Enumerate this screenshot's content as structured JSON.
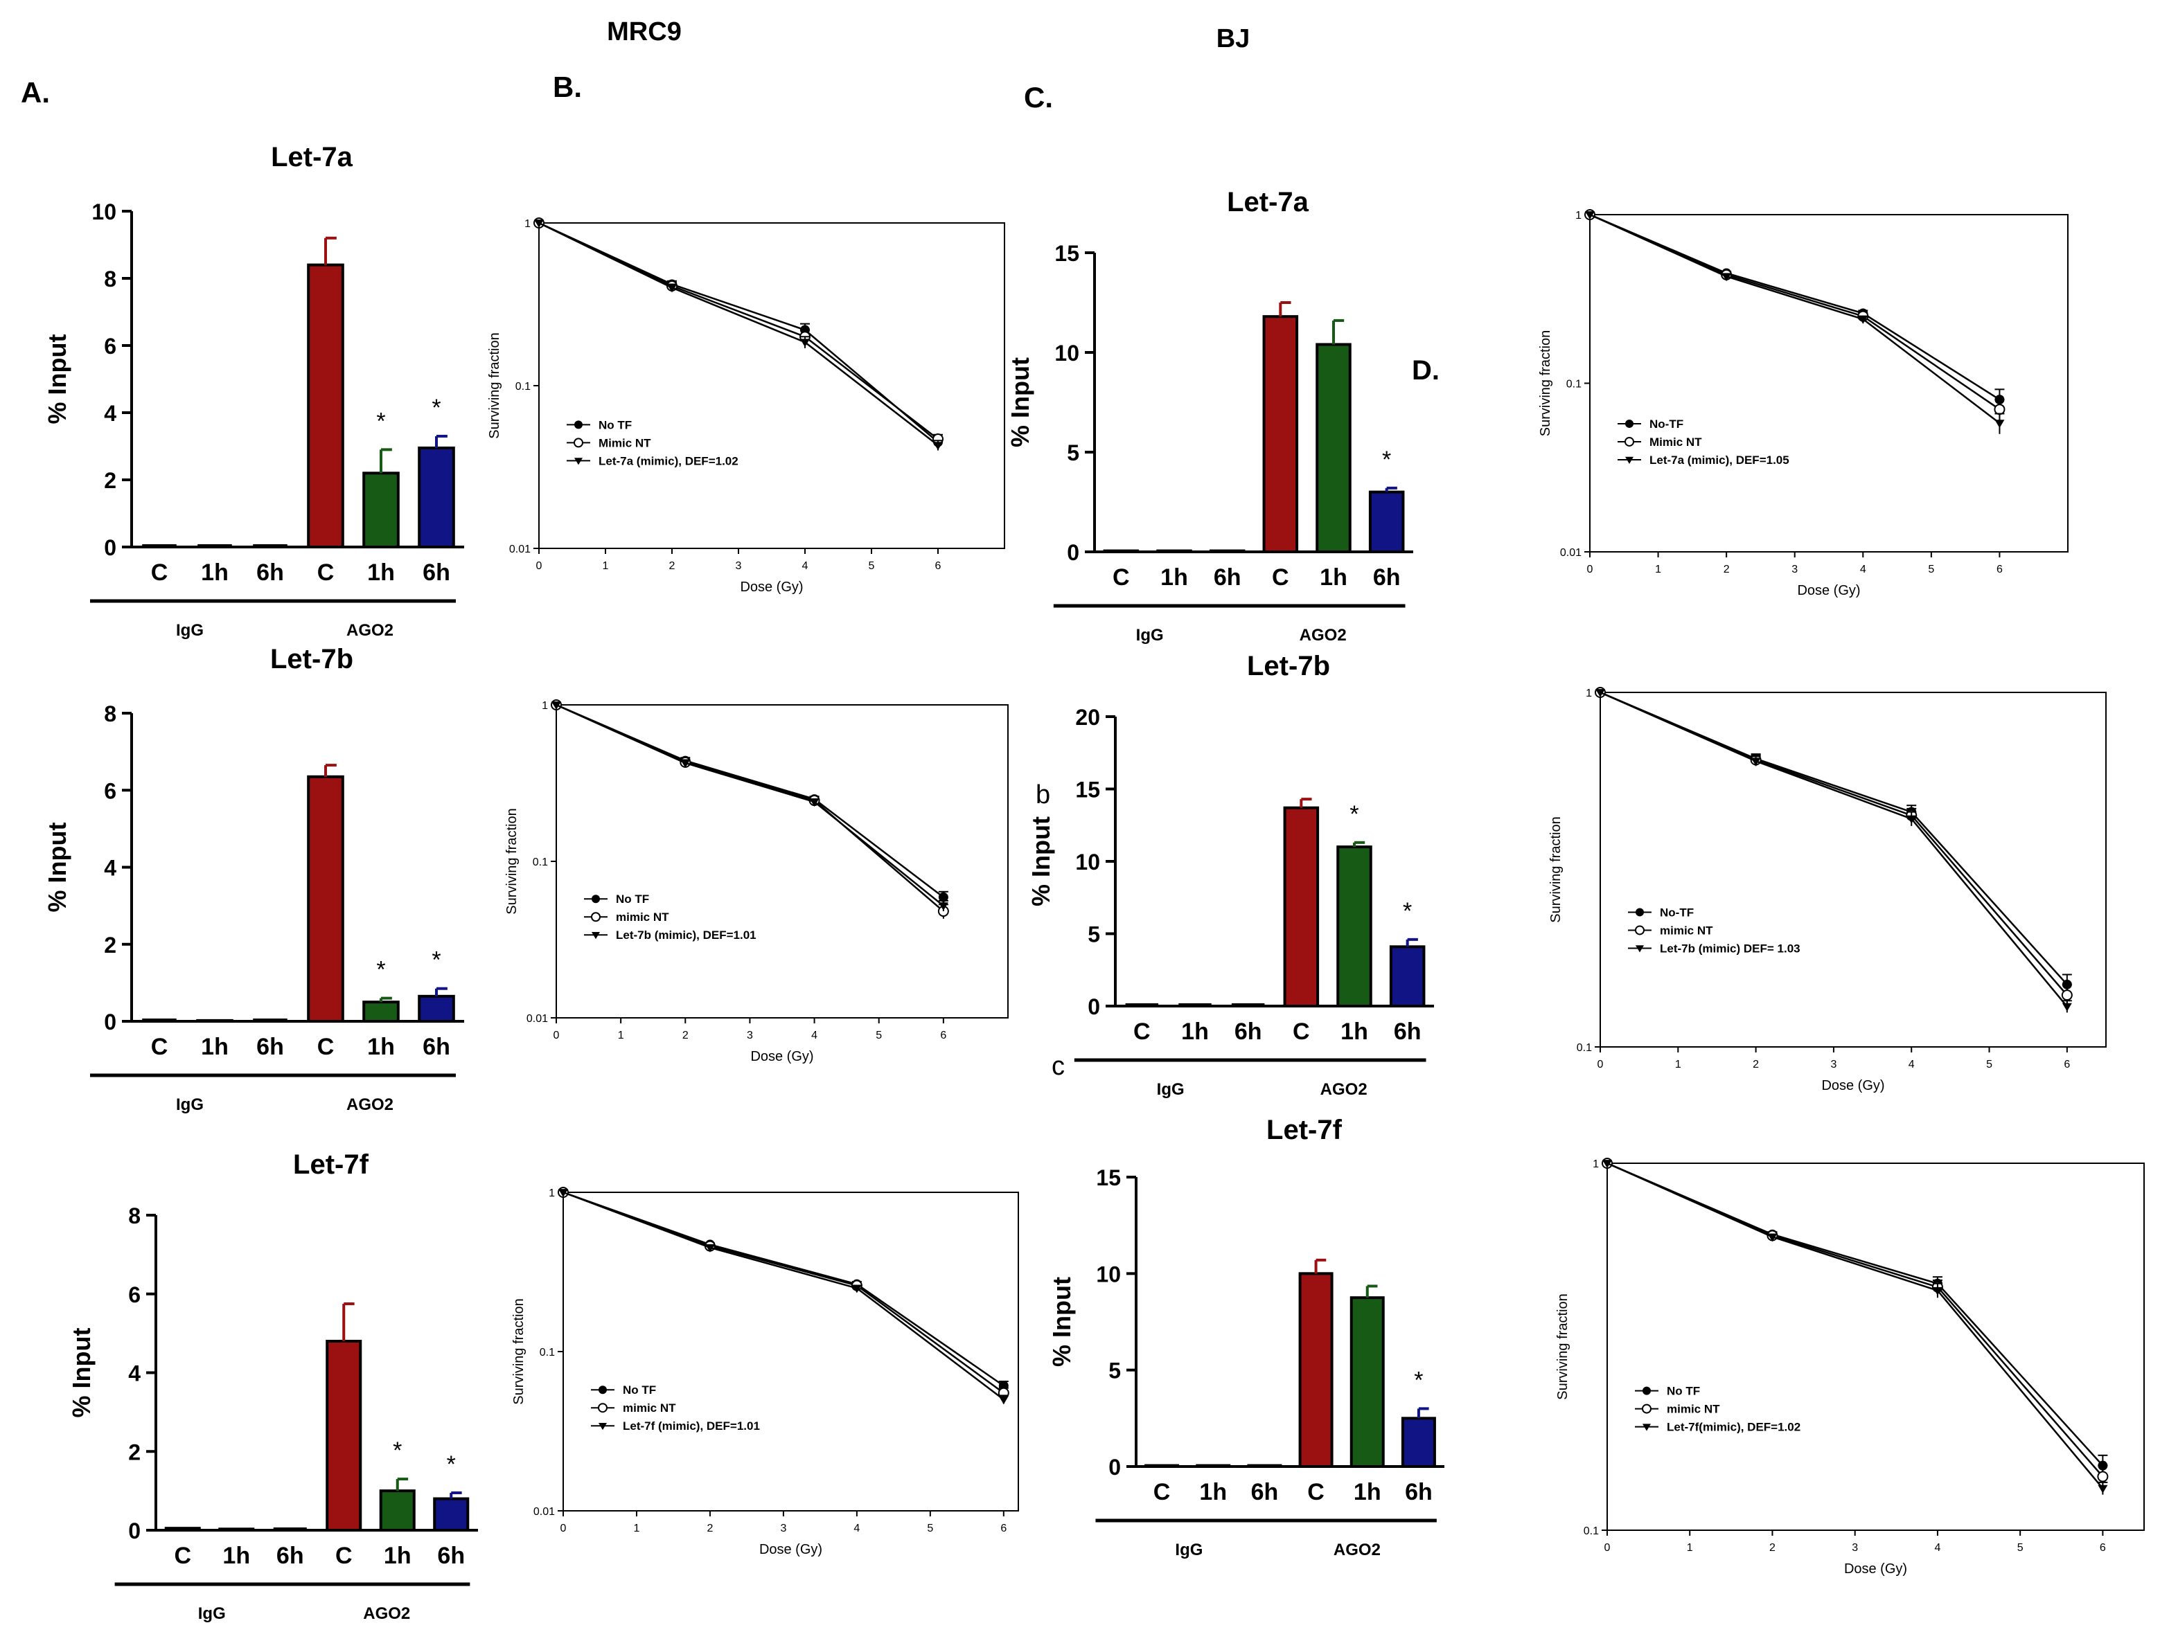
{
  "header": {
    "group_mrc9": "MRC9",
    "group_bj": "BJ",
    "panel_a": "A.",
    "panel_b": "B.",
    "panel_c": "C.",
    "panel_d": "D.",
    "stray_b": "b",
    "stray_c": "c"
  },
  "colors": {
    "c_bar": "#9b1010",
    "h1_bar": "#165a16",
    "h6_bar": "#101485",
    "axis": "#000000"
  },
  "chart_data": [
    {
      "id": "mrc9-let7a-bar",
      "type": "bar",
      "title": "Let-7a",
      "ylabel": "% Input",
      "ylim": [
        0,
        10
      ],
      "yticks": [
        0,
        2,
        4,
        6,
        8,
        10
      ],
      "categories": [
        "C",
        "1h",
        "6h",
        "C",
        "1h",
        "6h"
      ],
      "values": [
        0,
        0.02,
        0,
        8.4,
        2.2,
        2.95
      ],
      "errors": [
        0,
        0,
        0,
        0.8,
        0.7,
        0.35
      ],
      "significance": [
        "",
        "",
        "",
        "",
        "*",
        "*"
      ],
      "group_labels": [
        "IgG",
        "AGO2"
      ]
    },
    {
      "id": "mrc9-let7b-bar",
      "type": "bar",
      "title": "Let-7b",
      "ylabel": "% Input",
      "ylim": [
        0,
        8
      ],
      "yticks": [
        0,
        2,
        4,
        6,
        8
      ],
      "categories": [
        "C",
        "1h",
        "6h",
        "C",
        "1h",
        "6h"
      ],
      "values": [
        0,
        0.02,
        0,
        6.35,
        0.5,
        0.65
      ],
      "errors": [
        0,
        0,
        0,
        0.3,
        0.1,
        0.2
      ],
      "significance": [
        "",
        "",
        "",
        "",
        "*",
        "*"
      ],
      "group_labels": [
        "IgG",
        "AGO2"
      ]
    },
    {
      "id": "mrc9-let7f-bar",
      "type": "bar",
      "title": "Let-7f",
      "ylabel": "% Input",
      "ylim": [
        0,
        8
      ],
      "yticks": [
        0,
        2,
        4,
        6,
        8
      ],
      "categories": [
        "C",
        "1h",
        "6h",
        "C",
        "1h",
        "6h"
      ],
      "values": [
        0.05,
        0.03,
        0,
        4.8,
        1.0,
        0.8
      ],
      "errors": [
        0,
        0,
        0,
        0.95,
        0.3,
        0.15
      ],
      "significance": [
        "",
        "",
        "",
        "",
        "*",
        "*"
      ],
      "group_labels": [
        "IgG",
        "AGO2"
      ]
    },
    {
      "id": "bj-let7a-bar",
      "type": "bar",
      "title": "Let-7a",
      "ylabel": "% Input",
      "ylim": [
        0,
        15
      ],
      "yticks": [
        0,
        5,
        10,
        15
      ],
      "categories": [
        "C",
        "1h",
        "6h",
        "C",
        "1h",
        "6h"
      ],
      "values": [
        0.05,
        0.05,
        0.05,
        11.8,
        10.4,
        3.0
      ],
      "errors": [
        0,
        0,
        0,
        0.7,
        1.2,
        0.2
      ],
      "significance": [
        "",
        "",
        "",
        "",
        "",
        "*"
      ],
      "group_labels": [
        "IgG",
        "AGO2"
      ]
    },
    {
      "id": "bj-let7b-bar",
      "type": "bar",
      "title": "Let-7b",
      "ylabel": "% Input",
      "ylim": [
        0,
        20
      ],
      "yticks": [
        0,
        5,
        10,
        15,
        20
      ],
      "categories": [
        "C",
        "1h",
        "6h",
        "C",
        "1h",
        "6h"
      ],
      "values": [
        0,
        0,
        0,
        13.7,
        11.0,
        4.1
      ],
      "errors": [
        0,
        0,
        0,
        0.6,
        0.3,
        0.5
      ],
      "significance": [
        "",
        "",
        "",
        "",
        "*",
        "*"
      ],
      "group_labels": [
        "IgG",
        "AGO2"
      ]
    },
    {
      "id": "bj-let7f-bar",
      "type": "bar",
      "title": "Let-7f",
      "ylabel": "% Input",
      "ylim": [
        0,
        15
      ],
      "yticks": [
        0,
        5,
        10,
        15
      ],
      "categories": [
        "C",
        "1h",
        "6h",
        "C",
        "1h",
        "6h"
      ],
      "values": [
        0.05,
        0.05,
        0.05,
        10.0,
        8.75,
        2.5
      ],
      "errors": [
        0,
        0,
        0,
        0.7,
        0.6,
        0.5
      ],
      "significance": [
        "",
        "",
        "",
        "",
        "",
        "*"
      ],
      "group_labels": [
        "IgG",
        "AGO2"
      ]
    },
    {
      "id": "mrc9-let7a-survival",
      "type": "line",
      "xlabel": "Dose (Gy)",
      "ylabel": "Surviving fraction",
      "yscale": "log",
      "xlim": [
        0,
        7
      ],
      "ylim": [
        0.01,
        1
      ],
      "xticks": [
        0,
        1,
        2,
        3,
        4,
        5,
        6
      ],
      "yticks": [
        0.01,
        0.1,
        1
      ],
      "yticklabels": [
        "0.01",
        "0.1",
        "1"
      ],
      "x": [
        0,
        2,
        4,
        6
      ],
      "series": [
        {
          "name": "No TF",
          "marker": "filled-circle",
          "values": [
            1,
            0.42,
            0.22,
            0.045
          ],
          "errors": [
            0,
            0.02,
            0.02,
            0.003
          ]
        },
        {
          "name": "Mimic NT",
          "marker": "open-circle",
          "values": [
            1,
            0.41,
            0.2,
            0.047
          ],
          "errors": [
            0,
            0.02,
            0.02,
            0.003
          ]
        },
        {
          "name": "Let-7a (mimic), DEF=1.02",
          "marker": "filled-triangle",
          "values": [
            1,
            0.4,
            0.185,
            0.043
          ],
          "errors": [
            0,
            0.02,
            0.015,
            0.003
          ]
        }
      ]
    },
    {
      "id": "mrc9-let7b-survival",
      "type": "line",
      "xlabel": "Dose (Gy)",
      "ylabel": "Surviving fraction",
      "yscale": "log",
      "xlim": [
        0,
        7
      ],
      "ylim": [
        0.01,
        1
      ],
      "xticks": [
        0,
        1,
        2,
        3,
        4,
        5,
        6
      ],
      "yticks": [
        0.01,
        0.1,
        1
      ],
      "yticklabels": [
        "0.01",
        "0.1",
        "1"
      ],
      "x": [
        0,
        2,
        4,
        6
      ],
      "series": [
        {
          "name": "No TF",
          "marker": "filled-circle",
          "values": [
            1,
            0.44,
            0.25,
            0.059
          ],
          "errors": [
            0,
            0.02,
            0.01,
            0.005
          ]
        },
        {
          "name": "mimic NT",
          "marker": "open-circle",
          "values": [
            1,
            0.43,
            0.245,
            0.048
          ],
          "errors": [
            0,
            0.02,
            0.01,
            0.005
          ]
        },
        {
          "name": "Let-7b (mimic), DEF=1.01",
          "marker": "filled-triangle",
          "values": [
            1,
            0.425,
            0.24,
            0.052
          ],
          "errors": [
            0,
            0.02,
            0.01,
            0.004
          ]
        }
      ]
    },
    {
      "id": "mrc9-let7f-survival",
      "type": "line",
      "xlabel": "Dose (Gy)",
      "ylabel": "Surviving fraction",
      "yscale": "log",
      "xlim": [
        0,
        6.2
      ],
      "ylim": [
        0.01,
        1
      ],
      "xticks": [
        0,
        1,
        2,
        3,
        4,
        5,
        6
      ],
      "yticks": [
        0.01,
        0.1,
        1
      ],
      "yticklabels": [
        "0.01",
        "0.1",
        "1"
      ],
      "x": [
        0,
        2,
        4,
        6
      ],
      "series": [
        {
          "name": "No TF",
          "marker": "filled-circle",
          "values": [
            1,
            0.47,
            0.265,
            0.061
          ],
          "errors": [
            0,
            0.01,
            0.01,
            0.004
          ]
        },
        {
          "name": "mimic NT",
          "marker": "open-circle",
          "values": [
            1,
            0.46,
            0.26,
            0.055
          ],
          "errors": [
            0,
            0.01,
            0.01,
            0.004
          ]
        },
        {
          "name": "Let-7f (mimic), DEF=1.01",
          "marker": "filled-triangle",
          "values": [
            1,
            0.45,
            0.25,
            0.05
          ],
          "errors": [
            0,
            0.01,
            0.01,
            0.003
          ]
        }
      ]
    },
    {
      "id": "bj-let7a-survival",
      "type": "line",
      "xlabel": "Dose (Gy)",
      "ylabel": "Surviving fraction",
      "yscale": "log",
      "xlim": [
        0,
        7
      ],
      "ylim": [
        0.01,
        1
      ],
      "xticks": [
        0,
        1,
        2,
        3,
        4,
        5,
        6
      ],
      "yticks": [
        0.01,
        0.1,
        1
      ],
      "yticklabels": [
        "0.01",
        "0.1",
        "1"
      ],
      "x": [
        0,
        2,
        4,
        6
      ],
      "series": [
        {
          "name": "No-TF",
          "marker": "filled-circle",
          "values": [
            1,
            0.45,
            0.26,
            0.08
          ],
          "errors": [
            0,
            0.01,
            0.01,
            0.012
          ]
        },
        {
          "name": "Mimic NT",
          "marker": "open-circle",
          "values": [
            1,
            0.44,
            0.25,
            0.07
          ],
          "errors": [
            0,
            0.01,
            0.01,
            0.01
          ]
        },
        {
          "name": "Let-7a (mimic), DEF=1.05",
          "marker": "filled-triangle",
          "values": [
            1,
            0.43,
            0.24,
            0.058
          ],
          "errors": [
            0,
            0.01,
            0.01,
            0.008
          ]
        }
      ]
    },
    {
      "id": "bj-let7b-survival",
      "type": "line",
      "xlabel": "Dose (Gy)",
      "ylabel": "Surviving fraction",
      "yscale": "log",
      "xlim": [
        0,
        6.5
      ],
      "ylim": [
        0.1,
        1
      ],
      "xticks": [
        0,
        1,
        2,
        3,
        4,
        5,
        6
      ],
      "yticks": [
        0.1,
        1
      ],
      "yticklabels": [
        "0.1",
        "1"
      ],
      "x": [
        0,
        2,
        4,
        6
      ],
      "series": [
        {
          "name": "No-TF",
          "marker": "filled-circle",
          "values": [
            1,
            0.65,
            0.46,
            0.15
          ],
          "errors": [
            0,
            0.02,
            0.02,
            0.01
          ]
        },
        {
          "name": "mimic NT",
          "marker": "open-circle",
          "values": [
            1,
            0.645,
            0.45,
            0.14
          ],
          "errors": [
            0,
            0.02,
            0.02,
            0.01
          ]
        },
        {
          "name": "Let-7b (mimic) DEF= 1.03",
          "marker": "filled-triangle",
          "values": [
            1,
            0.64,
            0.44,
            0.13
          ],
          "errors": [
            0,
            0.02,
            0.02,
            0.005
          ]
        }
      ]
    },
    {
      "id": "bj-let7f-survival",
      "type": "line",
      "xlabel": "Dose (Gy)",
      "ylabel": "Surviving fraction",
      "yscale": "log",
      "xlim": [
        0,
        6.5
      ],
      "ylim": [
        0.1,
        1
      ],
      "xticks": [
        0,
        1,
        2,
        3,
        4,
        5,
        6
      ],
      "yticks": [
        0.1,
        1
      ],
      "yticklabels": [
        "0.1",
        "1"
      ],
      "x": [
        0,
        2,
        4,
        6
      ],
      "series": [
        {
          "name": "No TF",
          "marker": "filled-circle",
          "values": [
            1,
            0.64,
            0.47,
            0.15
          ],
          "errors": [
            0,
            0.01,
            0.02,
            0.01
          ]
        },
        {
          "name": "mimic NT",
          "marker": "open-circle",
          "values": [
            1,
            0.635,
            0.46,
            0.14
          ],
          "errors": [
            0,
            0.01,
            0.02,
            0.01
          ]
        },
        {
          "name": "Let-7f(mimic), DEF=1.02",
          "marker": "filled-triangle",
          "values": [
            1,
            0.63,
            0.45,
            0.13
          ],
          "errors": [
            0,
            0.01,
            0.02,
            0.005
          ]
        }
      ]
    }
  ]
}
